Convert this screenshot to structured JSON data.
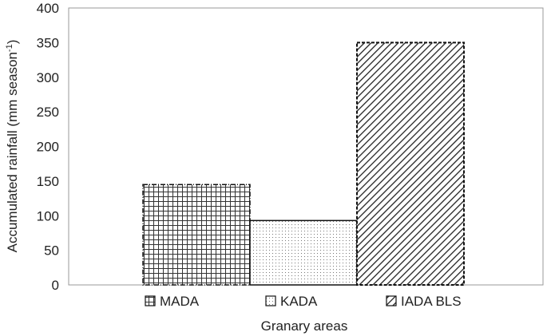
{
  "chart_data": {
    "type": "bar",
    "categories": [
      "MADA",
      "KADA",
      "IADA BLS"
    ],
    "values": [
      145,
      93,
      350
    ],
    "patterns": [
      "grid",
      "dots",
      "diagonal"
    ],
    "xlabel": "Granary areas",
    "ylabel_main": "Accumulated rainfall (mm season",
    "ylabel_sup": "-1",
    "ylabel_end": ")",
    "ylim": [
      0,
      400
    ],
    "yticks": [
      0,
      50,
      100,
      150,
      200,
      250,
      300,
      350,
      400
    ],
    "grid": false,
    "legend": {
      "placement": "bottom",
      "items": [
        "MADA",
        "KADA",
        "IADA BLS"
      ]
    }
  }
}
